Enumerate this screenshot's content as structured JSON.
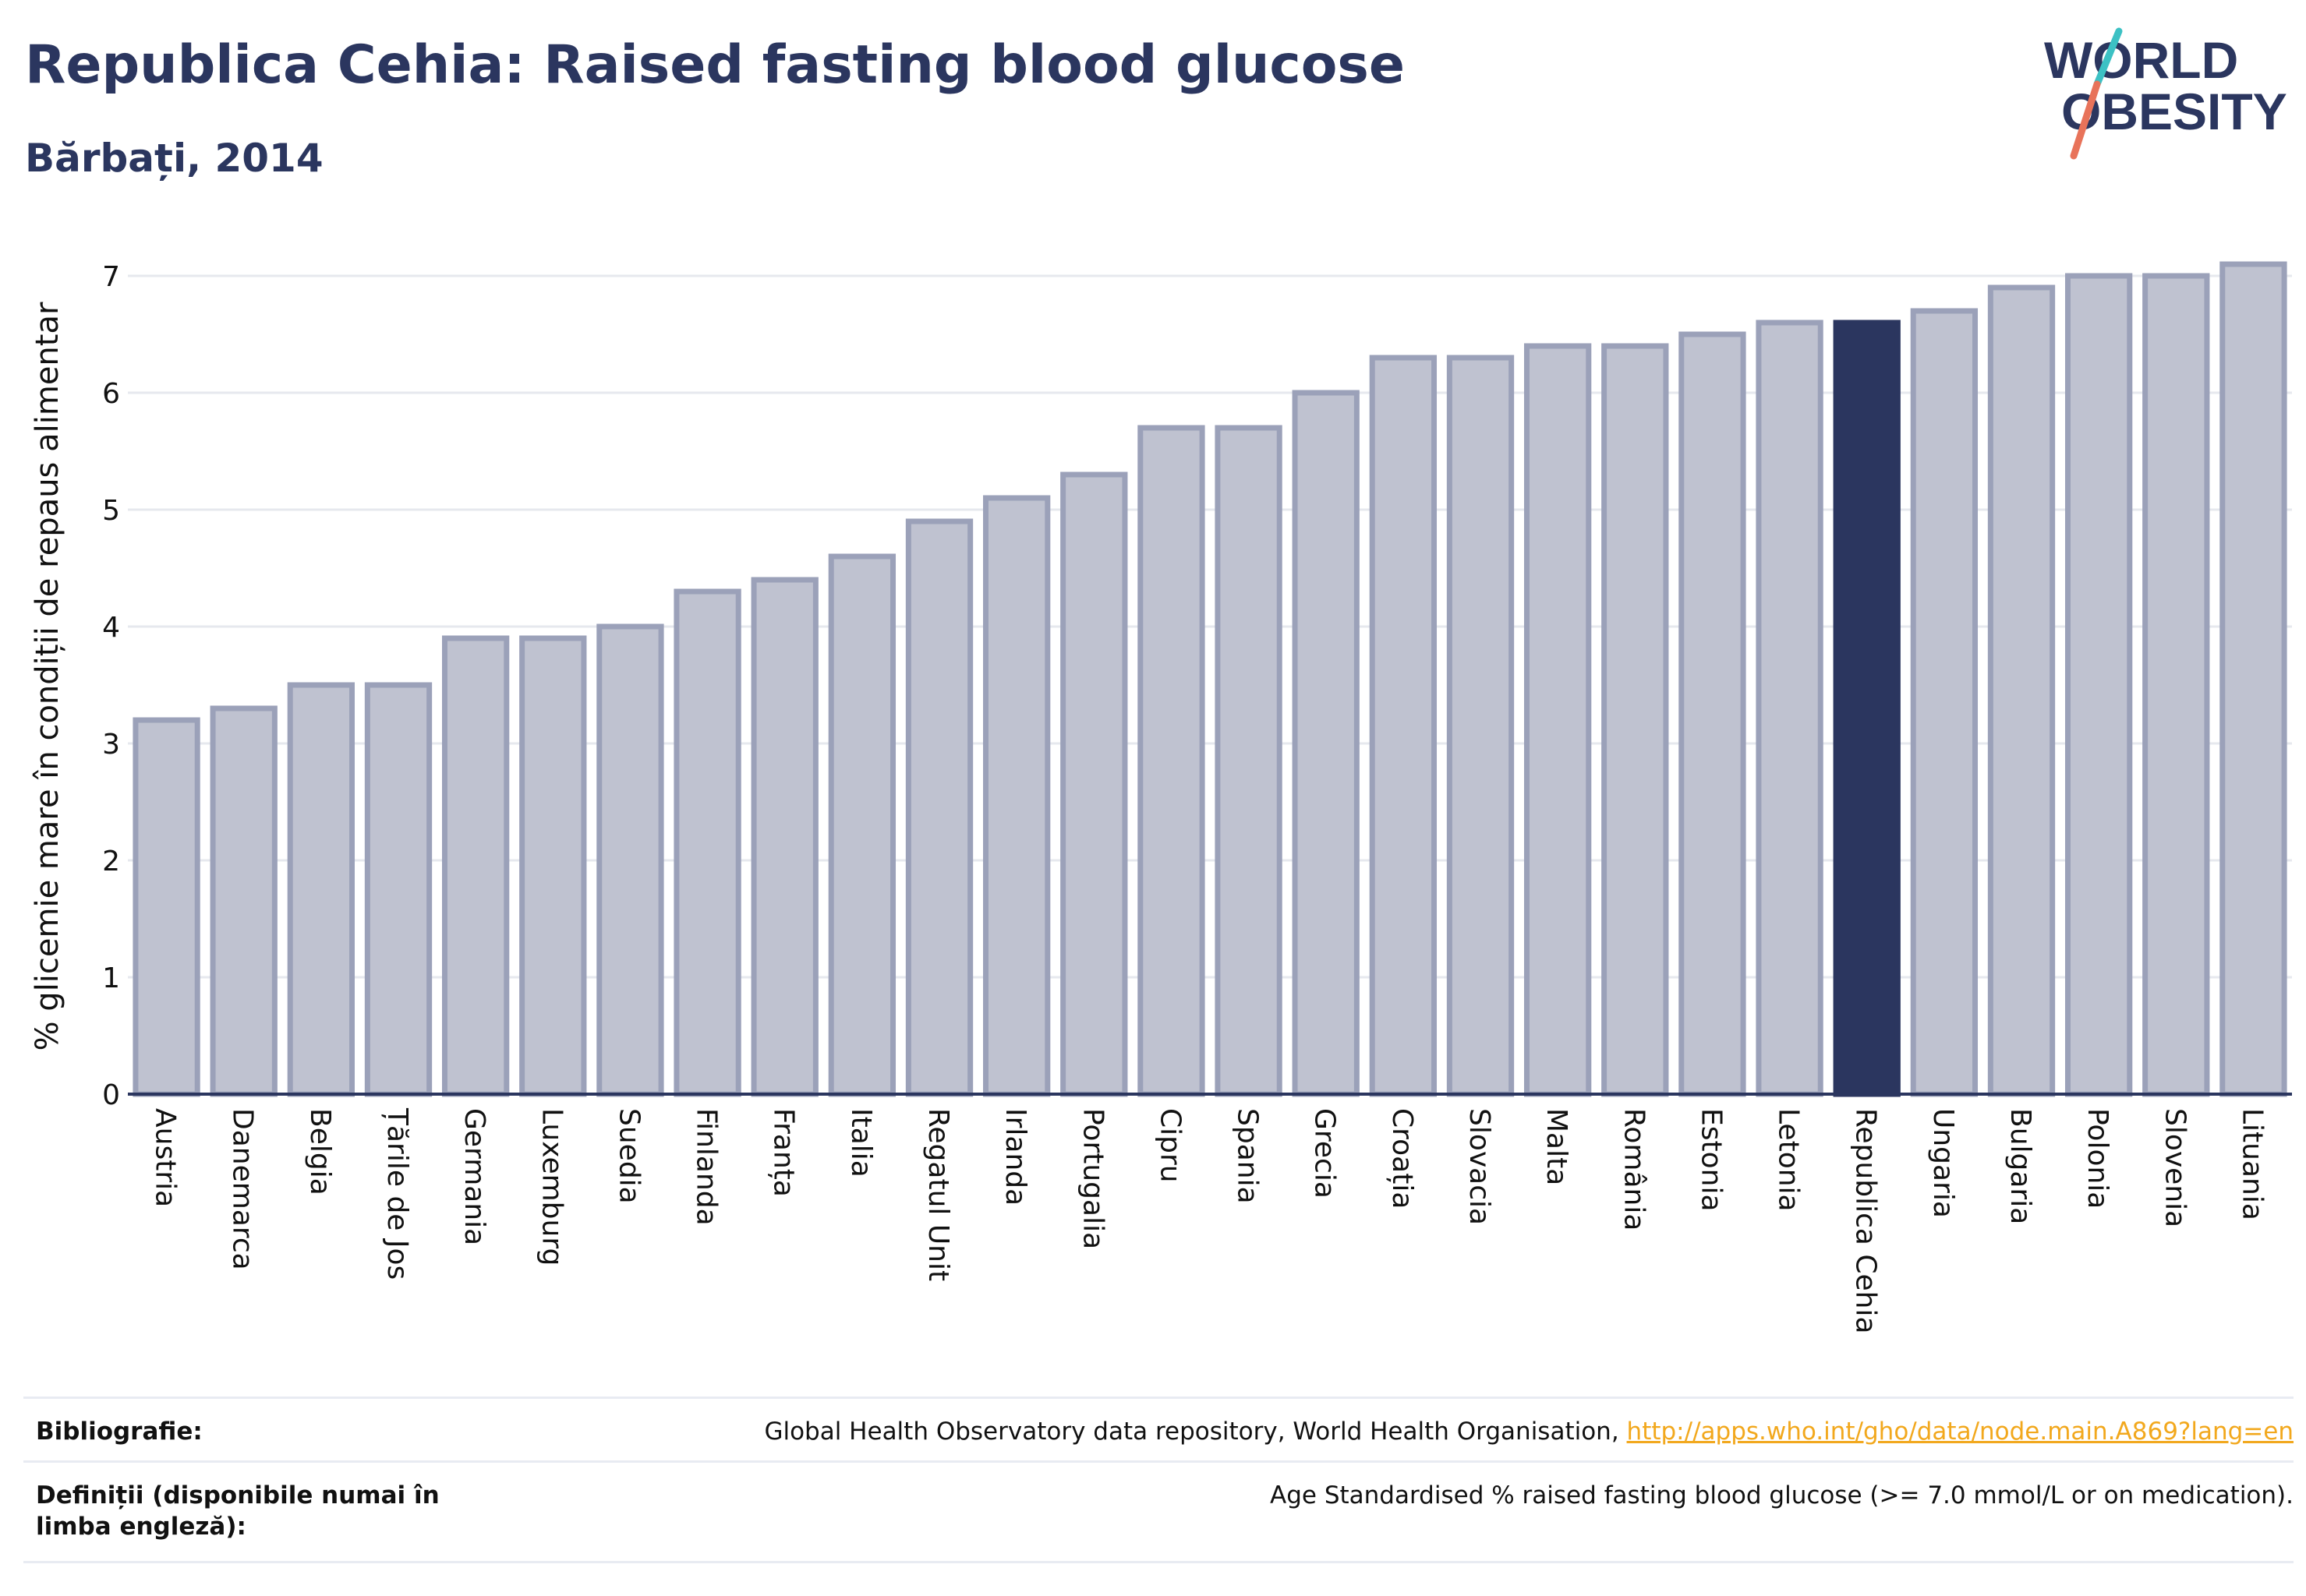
{
  "header": {
    "title": "Republica Cehia: Raised fasting blood glucose",
    "subtitle": "Bărbați, 2014"
  },
  "logo": {
    "line1": "WORLD",
    "line2": "OBESITY",
    "colors": {
      "text": "#2b365f",
      "slash_top": "#3cc1c4",
      "slash_bottom": "#e8735a"
    }
  },
  "chart_data": {
    "type": "bar",
    "ylabel": "% glicemie mare în condiții de repaus alimentar",
    "xlabel": "",
    "ylim": [
      0,
      7.3
    ],
    "yticks": [
      0,
      1,
      2,
      3,
      4,
      5,
      6,
      7
    ],
    "grid": true,
    "highlight": "Republica Cehia",
    "colors": {
      "bar": "#bfc2d0",
      "bar_edge": "#9ba1b9",
      "highlight": "#2b365f",
      "grid": "#e6e8ee",
      "axis": "#2b365f"
    },
    "categories": [
      "Austria",
      "Danemarca",
      "Belgia",
      "Țările de Jos",
      "Germania",
      "Luxemburg",
      "Suedia",
      "Finlanda",
      "Franța",
      "Italia",
      "Regatul Unit",
      "Irlanda",
      "Portugalia",
      "Cipru",
      "Spania",
      "Grecia",
      "Croația",
      "Slovacia",
      "Malta",
      "România",
      "Estonia",
      "Letonia",
      "Republica Cehia",
      "Ungaria",
      "Bulgaria",
      "Polonia",
      "Slovenia",
      "Lituania"
    ],
    "values": [
      3.2,
      3.3,
      3.5,
      3.5,
      3.9,
      3.9,
      4.0,
      4.3,
      4.4,
      4.6,
      4.9,
      5.1,
      5.3,
      5.7,
      5.7,
      6.0,
      6.3,
      6.3,
      6.4,
      6.4,
      6.5,
      6.6,
      6.6,
      6.7,
      6.9,
      7.0,
      7.0,
      7.1
    ]
  },
  "footer": {
    "bibliography_label": "Bibliografie:",
    "bibliography_text": "Global Health Observatory data repository, World Health Organisation, ",
    "bibliography_link": "http://apps.who.int/gho/data/node.main.A869?lang=en",
    "definitions_label": "Definiții (disponibile numai în limba engleză):",
    "definitions_text": "Age Standardised % raised fasting blood glucose (>= 7.0 mmol/L or on medication)."
  }
}
